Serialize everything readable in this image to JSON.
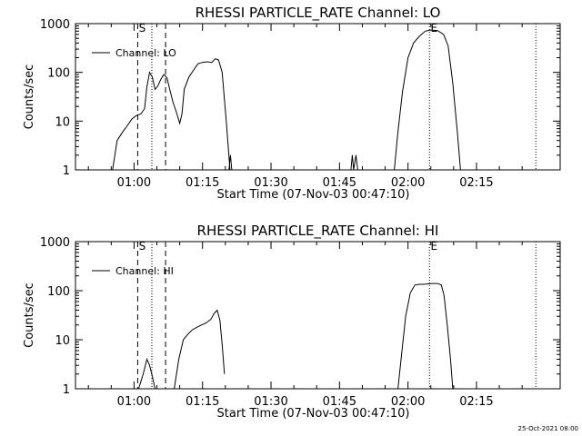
{
  "chart_data": [
    {
      "type": "line",
      "title": "RHESSI PARTICLE_RATE Channel: LO",
      "xlabel": "Start Time (07-Nov-03 00:47:10)",
      "ylabel": "Counts/sec",
      "yscale": "log",
      "ylim": [
        1,
        1000
      ],
      "yticks": [
        "1",
        "10",
        "100",
        "1000"
      ],
      "xticks": [
        "01:00",
        "01:15",
        "01:30",
        "01:45",
        "02:00",
        "02:15"
      ],
      "xtick_minutes": [
        60,
        75,
        90,
        105,
        120,
        135
      ],
      "xlim_minutes": [
        47.17,
        153.33
      ],
      "legend": "Channel: LO",
      "legend_position": "top-left",
      "markers": [
        {
          "label": "S",
          "minute": 60.8,
          "style": "dashed"
        },
        {
          "label": "",
          "minute": 63.9,
          "style": "dotted"
        },
        {
          "label": "",
          "minute": 66.9,
          "style": "dashed"
        },
        {
          "label": "E",
          "minute": 124.7,
          "style": "dotted"
        },
        {
          "label": "",
          "minute": 148.0,
          "style": "dotted"
        }
      ],
      "series": [
        {
          "segments": [
            [
              [
                55.3,
                1
              ],
              [
                56.3,
                4
              ],
              [
                57.5,
                6
              ],
              [
                58.5,
                8
              ],
              [
                59.5,
                11
              ],
              [
                60.5,
                13
              ],
              [
                61.5,
                14
              ],
              [
                62.3,
                18
              ],
              [
                62.8,
                50
              ],
              [
                63.4,
                100
              ],
              [
                64.0,
                80
              ],
              [
                64.6,
                45
              ],
              [
                65.2,
                52
              ],
              [
                65.8,
                70
              ],
              [
                66.5,
                90
              ],
              [
                67.2,
                78
              ],
              [
                67.8,
                45
              ],
              [
                68.5,
                25
              ],
              [
                69.3,
                15
              ],
              [
                70.0,
                9
              ],
              [
                70.5,
                14
              ],
              [
                71.0,
                45
              ],
              [
                72.0,
                80
              ],
              [
                73.0,
                110
              ],
              [
                74.0,
                150
              ],
              [
                75.0,
                160
              ],
              [
                76.0,
                165
              ],
              [
                77.0,
                160
              ],
              [
                77.8,
                190
              ],
              [
                78.5,
                180
              ],
              [
                79.3,
                100
              ],
              [
                80.2,
                10
              ],
              [
                81.0,
                1
              ]
            ],
            [
              [
                80.8,
                1
              ],
              [
                81.1,
                2
              ],
              [
                81.4,
                1
              ]
            ],
            [
              [
                107.5,
                1
              ],
              [
                107.8,
                2
              ],
              [
                108.1,
                1
              ],
              [
                108.6,
                2
              ],
              [
                109.0,
                1
              ]
            ],
            [
              [
                117.0,
                1
              ],
              [
                117.8,
                6
              ],
              [
                118.8,
                40
              ],
              [
                120.0,
                200
              ],
              [
                121.2,
                400
              ],
              [
                122.5,
                550
              ],
              [
                123.8,
                700
              ],
              [
                125.0,
                740
              ],
              [
                126.5,
                720
              ],
              [
                127.8,
                600
              ],
              [
                128.8,
                350
              ],
              [
                129.8,
                60
              ],
              [
                130.8,
                6
              ],
              [
                131.5,
                1
              ]
            ]
          ]
        }
      ]
    },
    {
      "type": "line",
      "title": "RHESSI PARTICLE_RATE Channel: HI",
      "xlabel": "Start Time (07-Nov-03 00:47:10)",
      "ylabel": "Counts/sec",
      "yscale": "log",
      "ylim": [
        1,
        1000
      ],
      "yticks": [
        "1",
        "10",
        "100",
        "1000"
      ],
      "xticks": [
        "01:00",
        "01:15",
        "01:30",
        "01:45",
        "02:00",
        "02:15"
      ],
      "xtick_minutes": [
        60,
        75,
        90,
        105,
        120,
        135
      ],
      "xlim_minutes": [
        47.17,
        153.33
      ],
      "legend": "Channel: HI",
      "legend_position": "top-left",
      "markers": [
        {
          "label": "S",
          "minute": 60.8,
          "style": "dashed"
        },
        {
          "label": "",
          "minute": 63.9,
          "style": "dotted"
        },
        {
          "label": "",
          "minute": 66.9,
          "style": "dashed"
        },
        {
          "label": "E",
          "minute": 124.7,
          "style": "dotted"
        },
        {
          "label": "",
          "minute": 148.0,
          "style": "dotted"
        }
      ],
      "series": [
        {
          "segments": [
            [
              [
                61.0,
                1
              ],
              [
                62.0,
                2
              ],
              [
                62.8,
                4
              ],
              [
                63.4,
                3
              ],
              [
                64.0,
                1.8
              ],
              [
                64.6,
                1
              ]
            ],
            [
              [
                68.8,
                1
              ],
              [
                69.8,
                4
              ],
              [
                70.8,
                10
              ],
              [
                71.8,
                13
              ],
              [
                72.8,
                16
              ],
              [
                73.8,
                18
              ],
              [
                74.8,
                20
              ],
              [
                75.8,
                22
              ],
              [
                76.8,
                26
              ],
              [
                77.6,
                35
              ],
              [
                78.2,
                40
              ],
              [
                78.8,
                25
              ],
              [
                79.3,
                8
              ],
              [
                79.8,
                2
              ]
            ],
            [
              [
                117.8,
                1
              ],
              [
                118.6,
                5
              ],
              [
                119.5,
                30
              ],
              [
                120.5,
                90
              ],
              [
                121.5,
                130
              ],
              [
                122.5,
                135
              ],
              [
                123.5,
                135
              ],
              [
                124.5,
                138
              ],
              [
                125.5,
                140
              ],
              [
                126.5,
                140
              ],
              [
                127.3,
                130
              ],
              [
                127.9,
                80
              ],
              [
                128.6,
                20
              ],
              [
                129.3,
                4
              ],
              [
                129.8,
                1
              ]
            ]
          ]
        }
      ]
    }
  ],
  "timestamp": "25-Oct-2021 08:00"
}
